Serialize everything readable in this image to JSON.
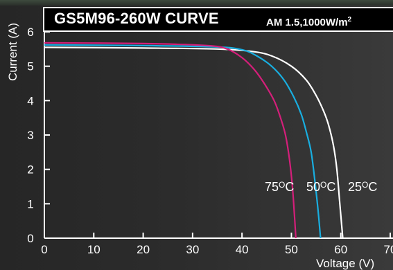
{
  "header": {
    "title": "GS5M96-260W CURVE",
    "condition_main": "AM 1.5,1000W/m",
    "condition_sup": "2"
  },
  "chart_data": {
    "type": "line",
    "title": "GS5M96-260W CURVE",
    "xlabel": "Voltage  (V)",
    "ylabel": "Current  (A)",
    "xlim": [
      0,
      70
    ],
    "ylim": [
      0,
      6
    ],
    "x_ticks": [
      "0",
      "10",
      "20",
      "30",
      "40",
      "50",
      "60",
      "70"
    ],
    "y_ticks": [
      "0",
      "1",
      "2",
      "3",
      "4",
      "5",
      "6"
    ],
    "series": [
      {
        "name": "25°C",
        "color": "#ffffff",
        "points": [
          [
            0,
            5.55
          ],
          [
            20,
            5.53
          ],
          [
            35,
            5.5
          ],
          [
            42,
            5.43
          ],
          [
            46,
            5.3
          ],
          [
            50,
            5.0
          ],
          [
            53,
            4.6
          ],
          [
            55,
            4.15
          ],
          [
            56.5,
            3.7
          ],
          [
            57.5,
            3.3
          ],
          [
            58.5,
            2.7
          ],
          [
            59.2,
            2.0
          ],
          [
            59.8,
            1.0
          ],
          [
            60.4,
            0.0
          ]
        ]
      },
      {
        "name": "50°C",
        "color": "#19aee0",
        "points": [
          [
            0,
            5.62
          ],
          [
            20,
            5.6
          ],
          [
            35,
            5.56
          ],
          [
            40,
            5.48
          ],
          [
            43,
            5.3
          ],
          [
            46,
            5.0
          ],
          [
            48.5,
            4.6
          ],
          [
            50.5,
            4.1
          ],
          [
            52,
            3.6
          ],
          [
            53,
            3.1
          ],
          [
            54,
            2.5
          ],
          [
            54.8,
            1.6
          ],
          [
            55.4,
            0.8
          ],
          [
            55.9,
            0.0
          ]
        ]
      },
      {
        "name": "75°C",
        "color": "#d41f7a",
        "points": [
          [
            0,
            5.68
          ],
          [
            20,
            5.66
          ],
          [
            33,
            5.6
          ],
          [
            37,
            5.5
          ],
          [
            40,
            5.25
          ],
          [
            42.5,
            4.9
          ],
          [
            44.5,
            4.5
          ],
          [
            46.5,
            4.0
          ],
          [
            47.8,
            3.5
          ],
          [
            48.8,
            3.0
          ],
          [
            49.6,
            2.3
          ],
          [
            50.2,
            1.5
          ],
          [
            50.6,
            0.7
          ],
          [
            50.9,
            0.0
          ]
        ]
      }
    ],
    "grid": false
  },
  "labels": {
    "temp_75": "75",
    "temp_50": "50",
    "temp_25": "25",
    "deg_symbol": "O",
    "unit_c": "C"
  }
}
